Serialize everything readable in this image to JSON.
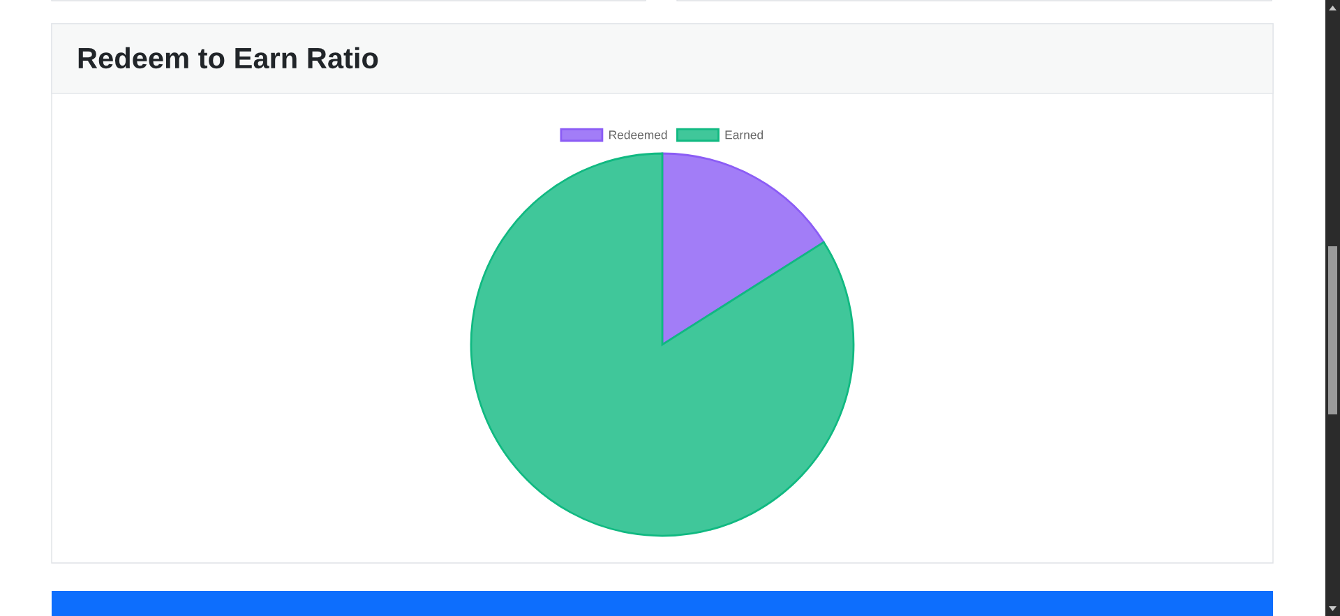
{
  "chart_data": {
    "type": "pie",
    "title": "Redeem to Earn Ratio",
    "categories": [
      "Redeemed",
      "Earned"
    ],
    "values": [
      16,
      84
    ],
    "colors": [
      "#a27df7",
      "#40c79a"
    ],
    "legend": "top"
  }
}
